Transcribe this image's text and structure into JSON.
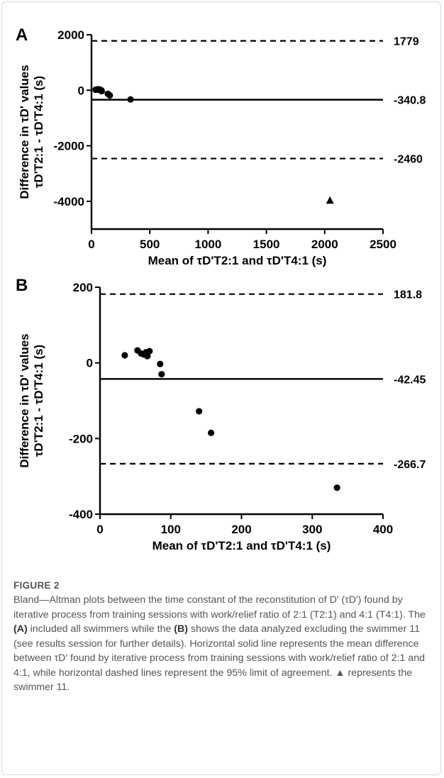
{
  "chart_data": [
    {
      "type": "scatter",
      "panel_label": "A",
      "xlabel": "Mean of τD'T2:1 and τD'T4:1 (s)",
      "ylabel_line1": "Difference in τD' values",
      "ylabel_line2": "τD'T2:1 - τD'T4:1 (s)",
      "xlim": [
        0,
        2500
      ],
      "ylim": [
        -5000,
        2000
      ],
      "xticks": [
        0,
        500,
        1000,
        1500,
        2000,
        2500
      ],
      "yticks": [
        2000,
        0,
        -2000,
        -4000
      ],
      "mean_difference": -340.8,
      "upper_limit": 1779,
      "lower_limit": -2460,
      "mean_label": "-340.8",
      "upper_label": "1779",
      "lower_label": "-2460",
      "points": [
        {
          "x": 35,
          "y": 20
        },
        {
          "x": 53,
          "y": 33
        },
        {
          "x": 58,
          "y": 25
        },
        {
          "x": 62,
          "y": 22
        },
        {
          "x": 65,
          "y": 28
        },
        {
          "x": 67,
          "y": 18
        },
        {
          "x": 70,
          "y": 31
        },
        {
          "x": 85,
          "y": -3
        },
        {
          "x": 87,
          "y": -30
        },
        {
          "x": 140,
          "y": -128
        },
        {
          "x": 157,
          "y": -185
        },
        {
          "x": 335,
          "y": -330
        }
      ],
      "outliers": [
        {
          "x": 2045,
          "y": -3960,
          "marker": "triangle"
        }
      ]
    },
    {
      "type": "scatter",
      "panel_label": "B",
      "xlabel": "Mean of τD'T2:1 and τD'T4:1 (s)",
      "ylabel_line1": "Difference in τD' values",
      "ylabel_line2": "τD'T2:1 - τD'T4:1 (s)",
      "xlim": [
        0,
        400
      ],
      "ylim": [
        -400,
        200
      ],
      "xticks": [
        0,
        100,
        200,
        300,
        400
      ],
      "yticks": [
        200,
        0,
        -200,
        -400
      ],
      "mean_difference": -42.45,
      "upper_limit": 181.8,
      "lower_limit": -266.7,
      "mean_label": "-42.45",
      "upper_label": "181.8",
      "lower_label": "-266.7",
      "points": [
        {
          "x": 35,
          "y": 20
        },
        {
          "x": 53,
          "y": 33
        },
        {
          "x": 58,
          "y": 25
        },
        {
          "x": 62,
          "y": 22
        },
        {
          "x": 65,
          "y": 28
        },
        {
          "x": 67,
          "y": 18
        },
        {
          "x": 70,
          "y": 31
        },
        {
          "x": 85,
          "y": -3
        },
        {
          "x": 87,
          "y": -30
        },
        {
          "x": 140,
          "y": -128
        },
        {
          "x": 157,
          "y": -185
        },
        {
          "x": 335,
          "y": -330
        }
      ],
      "outliers": []
    }
  ],
  "caption": {
    "label": "FIGURE 2",
    "s1": "Bland—Altman plots between the time constant of the reconstitution of D′ (τD′) found by iterative process from training sessions with work/relief ratio of 2:1 (T2:1) and 4:1 (T4:1). The ",
    "ref_a": "(A)",
    "s2": " included all swimmers while the ",
    "ref_b": "(B)",
    "s3": " shows the data analyzed excluding the swimmer 11 (see results session for further details). Horizontal solid line represents the mean difference between τD′ found by iterative process from training sessions with work/relief ratio of 2:1 and 4:1, while horizontal dashed lines represent the 95% limit of agreement. ▲ represents the swimmer 11."
  }
}
